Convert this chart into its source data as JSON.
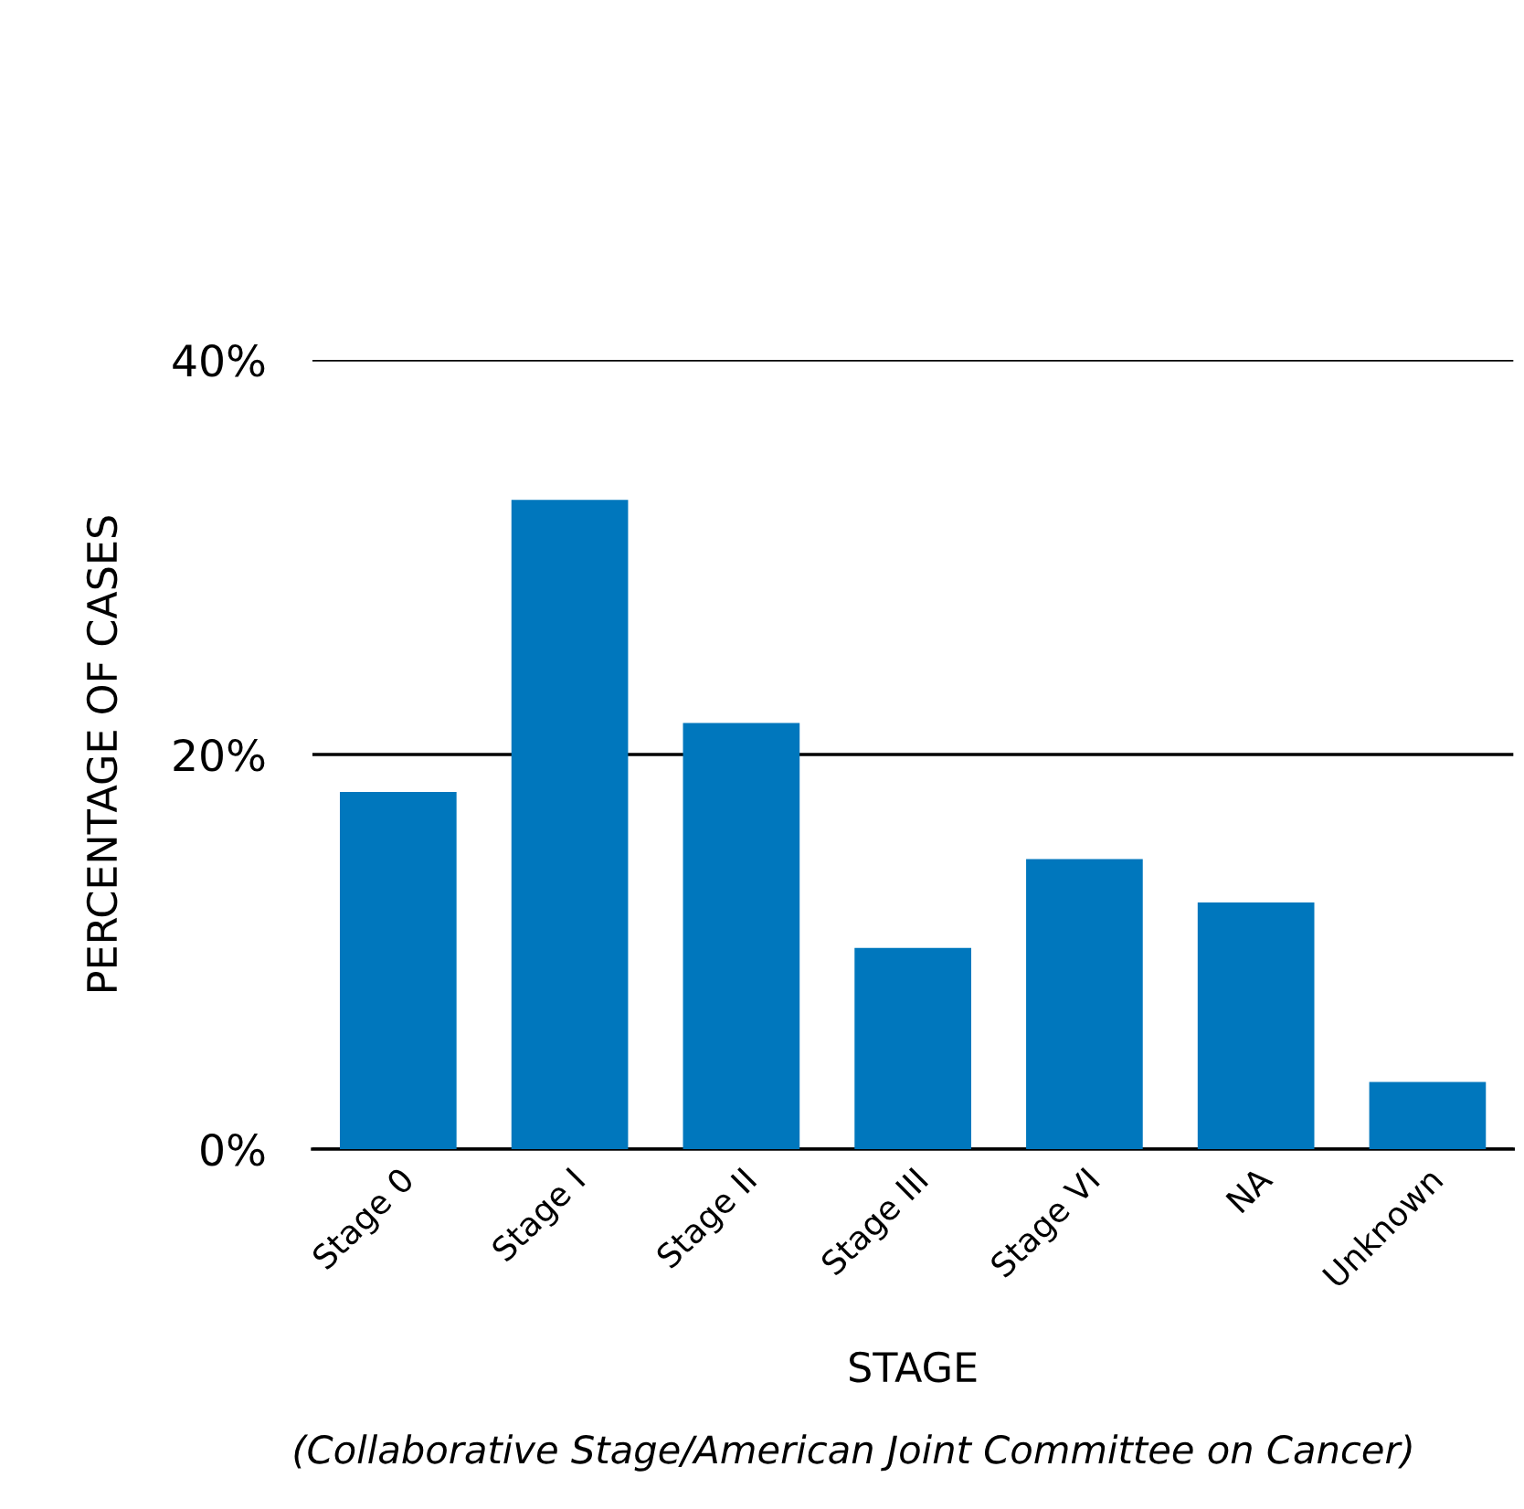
{
  "chart_data": {
    "type": "bar",
    "categories": [
      "Stage 0",
      "Stage I",
      "Stage II",
      "Stage III",
      "Stage VI",
      "NA",
      "Unknown"
    ],
    "values": [
      18.1,
      32.9,
      21.6,
      10.2,
      14.7,
      12.5,
      3.4
    ],
    "color": "#0077bd",
    "xlabel": "STAGE",
    "ylabel": "PERCENTAGE OF CASES",
    "annotations": [
      "(Collaborative Stage/American Joint Committee on Cancer)"
    ],
    "ylim": [
      0,
      40
    ],
    "yticks": [
      {
        "value": 0,
        "label": "0%"
      },
      {
        "value": 20,
        "label": "20%"
      },
      {
        "value": 40,
        "label": "40%"
      }
    ],
    "grid": "y",
    "legend": false
  }
}
